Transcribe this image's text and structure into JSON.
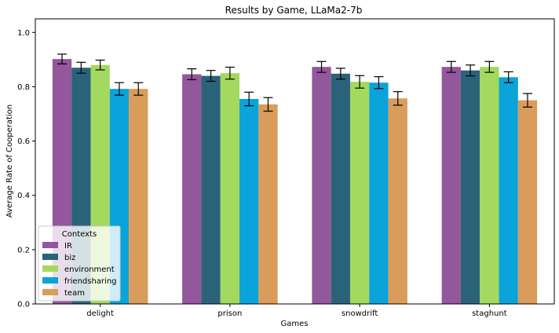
{
  "chart_data": {
    "type": "bar",
    "title": "Results by Game, LLaMa2-7b",
    "xlabel": "Games",
    "ylabel": "Average Rate of Cooperation",
    "ylim": [
      0,
      1.05
    ],
    "yticks": [
      "0.0",
      "0.2",
      "0.4",
      "0.6",
      "0.8",
      "1.0"
    ],
    "categories": [
      "delight",
      "prison",
      "snowdrift",
      "staghunt"
    ],
    "legend_title": "Contexts",
    "legend_position": "lower-left",
    "series": [
      {
        "name": "IR",
        "color": "#93579c",
        "values": [
          0.902,
          0.846,
          0.873,
          0.873
        ],
        "errors": [
          0.018,
          0.02,
          0.02,
          0.02
        ]
      },
      {
        "name": "biz",
        "color": "#2a6379",
        "values": [
          0.87,
          0.84,
          0.848,
          0.86
        ],
        "errors": [
          0.02,
          0.02,
          0.02,
          0.02
        ]
      },
      {
        "name": "environment",
        "color": "#a3d95e",
        "values": [
          0.88,
          0.85,
          0.818,
          0.873
        ],
        "errors": [
          0.018,
          0.022,
          0.023,
          0.02
        ]
      },
      {
        "name": "friendsharing",
        "color": "#0aa3da",
        "values": [
          0.792,
          0.755,
          0.815,
          0.835
        ],
        "errors": [
          0.023,
          0.025,
          0.022,
          0.02
        ]
      },
      {
        "name": "team",
        "color": "#d99c5b",
        "values": [
          0.792,
          0.735,
          0.757,
          0.75
        ],
        "errors": [
          0.023,
          0.025,
          0.025,
          0.025
        ]
      }
    ]
  }
}
